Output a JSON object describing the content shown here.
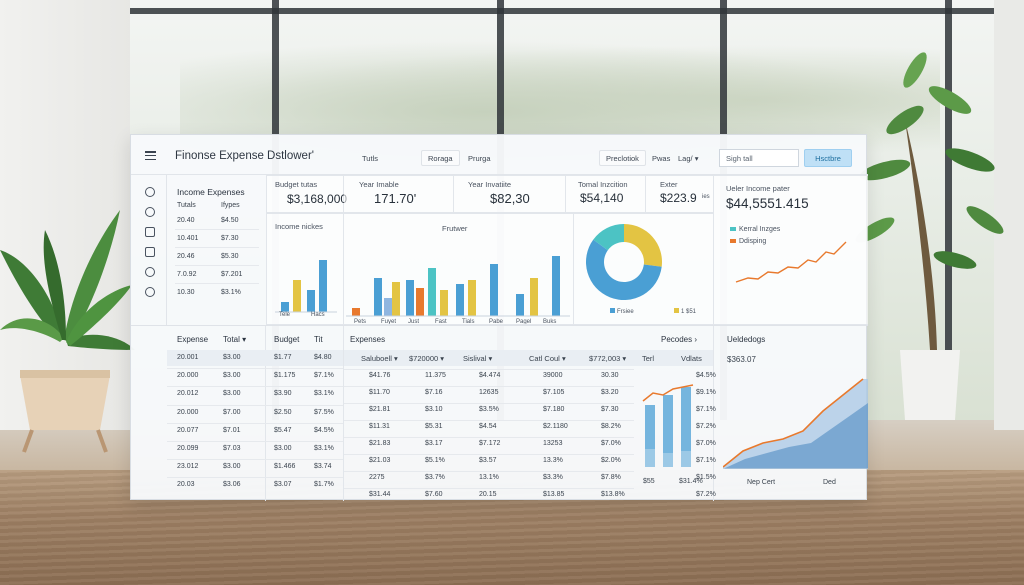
{
  "header": {
    "title": "Finonse Expense Dstlower'",
    "buttons": [
      "Tutls",
      "Roraga",
      "Prurga",
      "Preclotiok",
      "Pwas",
      "Lag/"
    ],
    "search_value": "Sigh tall",
    "primary_button": "Hsctbre"
  },
  "side_rail_icons": [
    "analytics-icon",
    "chat-icon",
    "inbox-icon",
    "calendar-icon",
    "clock-icon",
    "share-icon"
  ],
  "income_panel": {
    "title": "Income Expenses",
    "col_a": "Tutals",
    "col_b": "Ifypes",
    "rows": [
      [
        "20.40",
        "$4.50"
      ],
      [
        "10.401",
        "$7.30"
      ],
      [
        "20.46",
        "$5.30"
      ],
      [
        "7.0.92",
        "$7.201"
      ],
      [
        "10.30",
        "$3.1%"
      ]
    ]
  },
  "kpis": [
    {
      "label": "Budget tutas",
      "value": "$3,168,000"
    },
    {
      "label": "Year Imable",
      "value": "171.70'"
    },
    {
      "label": "Year Invatiite",
      "value": "$82,30"
    },
    {
      "label": "Tomal Inzcition",
      "value": "$54,140"
    },
    {
      "label": "Exter",
      "value": "$223.9"
    },
    {
      "label": "Ueler Income pater",
      "value": "$44,5551.415"
    }
  ],
  "kpi_suffix": "ies",
  "small_chart": {
    "title": "Income nickes",
    "categories": [
      "Tele",
      "Hacs"
    ]
  },
  "bar_panel": {
    "title": "Frutwer",
    "categories": [
      "Pets",
      "Fuyet",
      "Just",
      "Fast",
      "Tials",
      "Pabe",
      "Pagel",
      "Buks"
    ]
  },
  "pie_legend": [
    "Frsiee",
    "1 $51"
  ],
  "line_legend": [
    "Kerral Inzges",
    "Ddisping"
  ],
  "expense_table": {
    "headers": [
      "Expense",
      "Total",
      "Budget",
      "Tit"
    ],
    "sort_mark": "▾",
    "rows": [
      [
        "20.001",
        "$3.00",
        "$1.77",
        "$4.80"
      ],
      [
        "20.000",
        "$3.00",
        "$1.175",
        "$7.1%"
      ],
      [
        "20.012",
        "$3.00",
        "$3.90",
        "$3.1%"
      ],
      [
        "20.000",
        "$7.00",
        "$2.50",
        "$7.5%"
      ],
      [
        "20.077",
        "$7.01",
        "$5.47",
        "$4.5%"
      ],
      [
        "20.099",
        "$7.03",
        "$3.00",
        "$3.1%"
      ],
      [
        "23.012",
        "$3.00",
        "$1.466",
        "$3.74"
      ],
      [
        "20.03",
        "$3.06",
        "$3.07",
        "$1.7%"
      ]
    ]
  },
  "expenses_table": {
    "title": "Expenses",
    "right_link": "Pecodes",
    "headers": [
      "Saluboell",
      "$720000",
      "Sislival",
      "Catl Coul",
      "$772,003",
      "Terl",
      "Vdlats"
    ],
    "rows": [
      [
        "$41.76",
        "11.375",
        "$4.474",
        "39000",
        "30.30",
        "$4.5%"
      ],
      [
        "$11.70",
        "$7.16",
        "12635",
        "$7.105",
        "$3.20",
        "$9.1%"
      ],
      [
        "$21.81",
        "$3.10",
        "$3.5%",
        "$7.180",
        "$7.30",
        "$7.1%"
      ],
      [
        "$11.31",
        "$5.31",
        "$4.54",
        "$2.1180",
        "$8.2%",
        "$7.2%"
      ],
      [
        "$21.83",
        "$3.17",
        "$7.172",
        "13253",
        "$7.0%",
        "$7.0%"
      ],
      [
        "$21.03",
        "$5.1%",
        "$3.57",
        "13.3%",
        "$2.0%",
        "$7.1%"
      ],
      [
        "2275",
        "$3.7%",
        "13.1%",
        "$3.3%",
        "$7.8%",
        "$1.5%"
      ],
      [
        "$31.44",
        "$7.60",
        "20.15",
        "$13.85",
        "$13.8%",
        "$7.2%"
      ]
    ],
    "footer": [
      "$55",
      "$31.4%"
    ]
  },
  "trend_panel": {
    "title": "Ueldedogs",
    "value": "$363.07",
    "x_labels": [
      "Nep Cert",
      "Ded"
    ]
  },
  "colors": {
    "accent_blue": "#4a9fd4",
    "accent_orange": "#e8792d",
    "accent_yellow": "#e3c443",
    "accent_teal": "#4cc3c4"
  }
}
